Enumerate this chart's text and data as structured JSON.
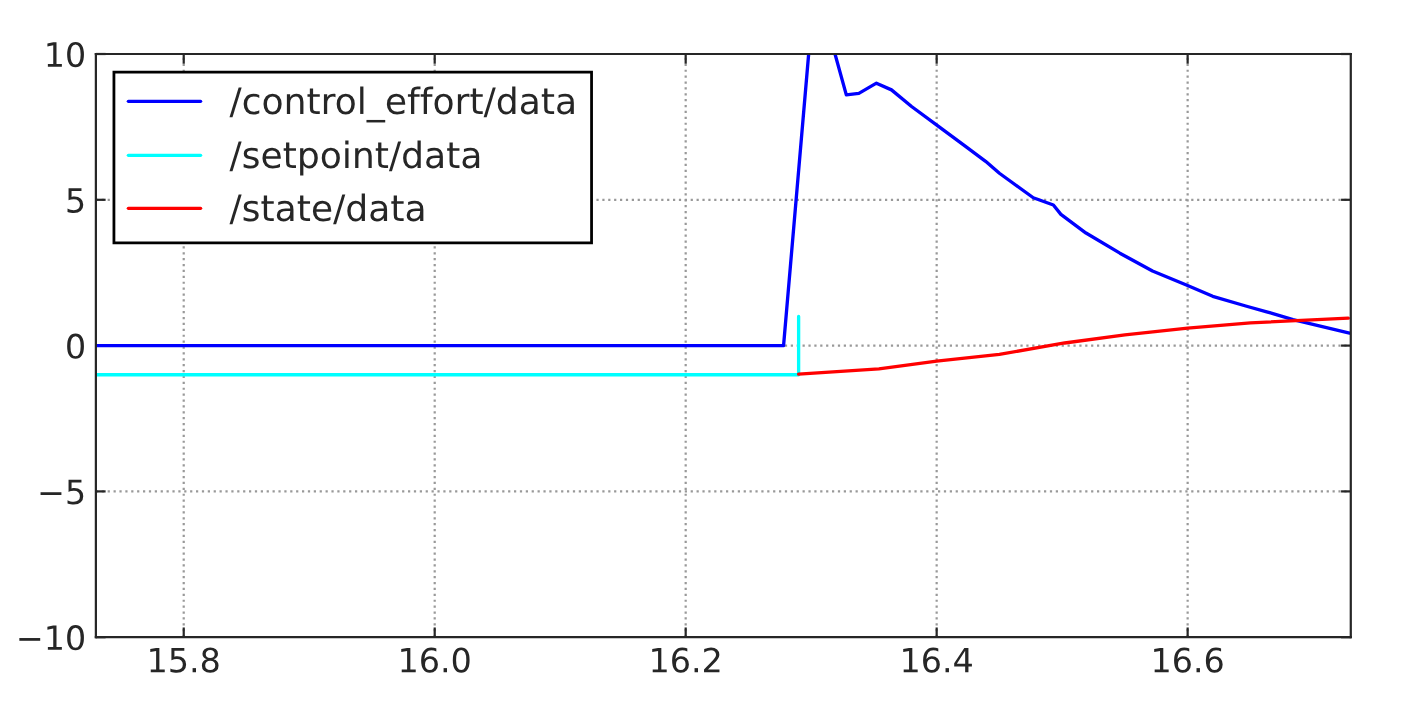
{
  "chart_data": {
    "type": "line",
    "series": [
      {
        "name": "/control_effort/data",
        "color": "#0000ff",
        "x": [
          15.73,
          16.278,
          16.298,
          16.308,
          16.319,
          16.328,
          16.338,
          16.352,
          16.364,
          16.38,
          16.402,
          16.423,
          16.439,
          16.45,
          16.477,
          16.493,
          16.499,
          16.519,
          16.546,
          16.572,
          16.599,
          16.62,
          16.647,
          16.663,
          16.684,
          16.729
        ],
        "values": [
          0,
          0,
          10,
          null,
          10,
          8.6,
          8.65,
          9.0,
          8.77,
          8.2,
          7.5,
          6.83,
          6.32,
          5.91,
          5.07,
          4.82,
          4.5,
          3.86,
          3.17,
          2.56,
          2.08,
          1.69,
          1.35,
          1.16,
          0.89,
          0.43
        ]
      },
      {
        "name": "/setpoint/data",
        "color": "#00ffff",
        "x": [
          15.73,
          16.29,
          16.29
        ],
        "values": [
          -1,
          -1,
          1
        ]
      },
      {
        "name": "/state/data",
        "color": "#ff0000",
        "x": [
          16.29,
          16.354,
          16.4,
          16.45,
          16.502,
          16.55,
          16.6,
          16.65,
          16.728
        ],
        "values": [
          -0.98,
          -0.8,
          -0.53,
          -0.3,
          0.09,
          0.37,
          0.6,
          0.78,
          0.94
        ]
      }
    ],
    "xlim": [
      15.73,
      16.73
    ],
    "ylim": [
      -10,
      10
    ],
    "xticks": [
      15.8,
      {
        "value": 16,
        "label": "16.0"
      },
      16.2,
      16.4,
      16.6
    ],
    "yticks": [
      {
        "value": -10,
        "label": "−10"
      },
      {
        "value": -5,
        "label": "−5"
      },
      0,
      5,
      10
    ],
    "grid": true,
    "legend": "top left",
    "marker": "none",
    "line_style": "solid"
  }
}
